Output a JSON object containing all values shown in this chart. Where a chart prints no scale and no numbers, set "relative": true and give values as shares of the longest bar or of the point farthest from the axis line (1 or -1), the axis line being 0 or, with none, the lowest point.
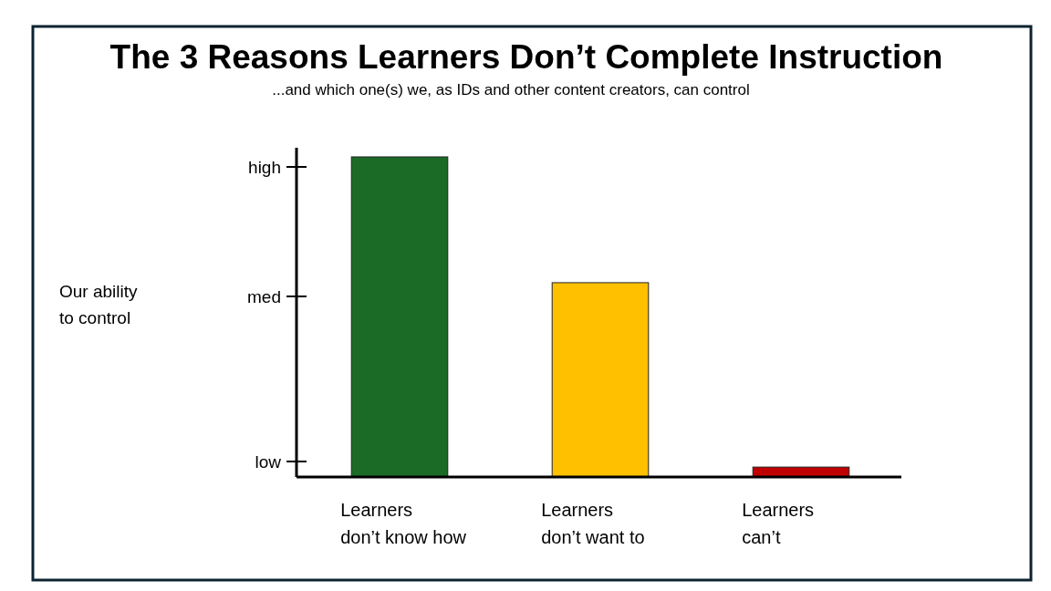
{
  "chart_data": {
    "type": "bar",
    "title": "The 3 Reasons Learners Don’t Complete Instruction",
    "subtitle": "...and which one(s) we, as IDs and other content creators, can control",
    "categories": [
      "Learners don’t know how",
      "Learners don’t want to",
      "Learners can’t"
    ],
    "values": [
      1,
      0.607,
      0.031
    ],
    "colors": [
      "#1b6b26",
      "#ffc000",
      "#c00000"
    ],
    "relative": true,
    "annotations": [
      "Our ability to control",
      "low",
      "med",
      "high"
    ]
  }
}
